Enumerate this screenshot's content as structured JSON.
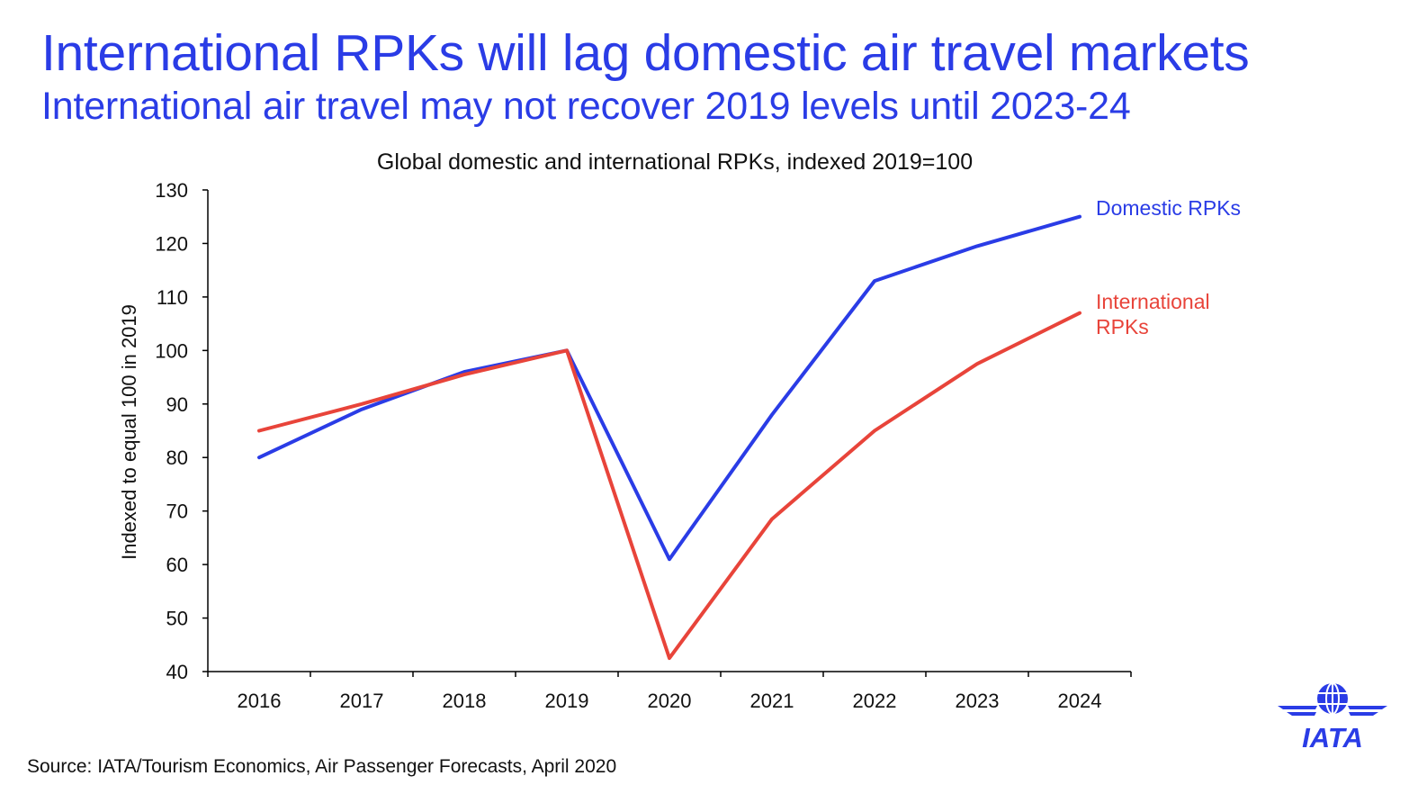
{
  "headline": "International RPKs will lag domestic air travel markets",
  "subheadline": "International air travel may not recover 2019 levels until 2023-24",
  "source": "Source: IATA/Tourism Economics, Air Passenger Forecasts, April 2020",
  "logo": {
    "text": "IATA",
    "icon": "globe-wings-icon"
  },
  "colors": {
    "title": "#2a3ce6",
    "domestic": "#2a3ce6",
    "international": "#e8443a",
    "axis": "#000000"
  },
  "chart_data": {
    "type": "line",
    "title": "Global domestic and international RPKs, indexed 2019=100",
    "xlabel": "",
    "ylabel": "Indexed to equal 100 in 2019",
    "ylim": [
      40,
      130
    ],
    "yticks": [
      130,
      120,
      110,
      100,
      90,
      80,
      70,
      60,
      50,
      40
    ],
    "categories": [
      "2016",
      "2017",
      "2018",
      "2019",
      "2020",
      "2021",
      "2022",
      "2023",
      "2024"
    ],
    "grid": false,
    "legend": "direct labels at line ends",
    "series": [
      {
        "name": "Domestic RPKs",
        "label_lines": [
          "Domestic RPKs"
        ],
        "color": "#2a3ce6",
        "values": [
          80,
          89,
          96,
          100,
          61,
          88,
          113,
          119.5,
          125
        ]
      },
      {
        "name": "International RPKs",
        "label_lines": [
          "International",
          "RPKs"
        ],
        "color": "#e8443a",
        "values": [
          85,
          90,
          95.5,
          100,
          42.5,
          68.5,
          85,
          97.5,
          107
        ]
      }
    ]
  }
}
